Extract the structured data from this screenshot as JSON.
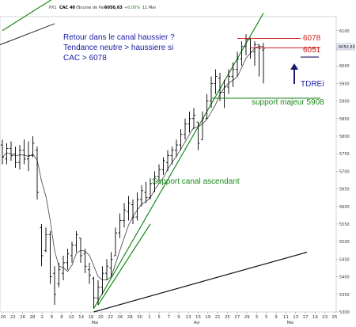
{
  "header": {
    "symbol": "PX1",
    "name": "CAC 40",
    "exchange": "(Bourse de Pa)",
    "last_value": "6050,63",
    "change": "+0,00%",
    "date": "11 Mai"
  },
  "chart_data": {
    "type": "candlestick",
    "title": "",
    "ylim": [
      5300,
      6140
    ],
    "y_ticks": [
      "5300",
      "5350",
      "5400",
      "5450",
      "5500",
      "5550",
      "5600",
      "5650",
      "5700",
      "5750",
      "5800",
      "5850",
      "5900",
      "5950",
      "6000",
      "6050",
      "6100"
    ],
    "x_ticks": [
      "20",
      "22",
      "26",
      "28",
      "2",
      "6",
      "8",
      "10",
      "14",
      "16",
      "20",
      "22",
      "26",
      "28",
      "30",
      "1",
      "5",
      "7",
      "9",
      "13",
      "15",
      "19",
      "21",
      "25",
      "27",
      "29",
      "3",
      "5",
      "9",
      "11",
      "13",
      "17",
      "19",
      "23",
      "25"
    ],
    "months": [
      "Mai",
      "Avr",
      "Mai"
    ],
    "last_price_badge": "6050,63",
    "bars": [
      {
        "h": 5790,
        "l": 5720,
        "o": 5775,
        "c": 5740
      },
      {
        "h": 5780,
        "l": 5720,
        "o": 5735,
        "c": 5765
      },
      {
        "h": 5785,
        "l": 5730,
        "o": 5765,
        "c": 5745
      },
      {
        "h": 5770,
        "l": 5710,
        "o": 5750,
        "c": 5725
      },
      {
        "h": 5775,
        "l": 5705,
        "o": 5725,
        "c": 5760
      },
      {
        "h": 5790,
        "l": 5720,
        "o": 5760,
        "c": 5735
      },
      {
        "h": 5785,
        "l": 5700,
        "o": 5735,
        "c": 5745
      },
      {
        "h": 5800,
        "l": 5740,
        "o": 5745,
        "c": 5780
      },
      {
        "h": 5770,
        "l": 5620,
        "o": 5760,
        "c": 5640
      },
      {
        "h": 5550,
        "l": 5430,
        "o": 5540,
        "c": 5460
      },
      {
        "h": 5540,
        "l": 5470,
        "o": 5475,
        "c": 5520
      },
      {
        "h": 5530,
        "l": 5380,
        "o": 5520,
        "c": 5400
      },
      {
        "h": 5430,
        "l": 5320,
        "o": 5410,
        "c": 5350
      },
      {
        "h": 5440,
        "l": 5370,
        "o": 5380,
        "c": 5420
      },
      {
        "h": 5460,
        "l": 5390,
        "o": 5410,
        "c": 5440
      },
      {
        "h": 5480,
        "l": 5420,
        "o": 5440,
        "c": 5465
      },
      {
        "h": 5500,
        "l": 5440,
        "o": 5460,
        "c": 5490
      },
      {
        "h": 5530,
        "l": 5470,
        "o": 5490,
        "c": 5520
      },
      {
        "h": 5510,
        "l": 5440,
        "o": 5510,
        "c": 5460
      },
      {
        "h": 5480,
        "l": 5410,
        "o": 5465,
        "c": 5430
      },
      {
        "h": 5440,
        "l": 5380,
        "o": 5420,
        "c": 5405
      },
      {
        "h": 5400,
        "l": 5310,
        "o": 5395,
        "c": 5340
      },
      {
        "h": 5390,
        "l": 5320,
        "o": 5340,
        "c": 5370
      },
      {
        "h": 5430,
        "l": 5350,
        "o": 5370,
        "c": 5410
      },
      {
        "h": 5450,
        "l": 5390,
        "o": 5410,
        "c": 5430
      },
      {
        "h": 5470,
        "l": 5400,
        "o": 5425,
        "c": 5450
      },
      {
        "h": 5540,
        "l": 5460,
        "o": 5460,
        "c": 5525
      },
      {
        "h": 5580,
        "l": 5510,
        "o": 5525,
        "c": 5560
      },
      {
        "h": 5610,
        "l": 5540,
        "o": 5560,
        "c": 5590
      },
      {
        "h": 5630,
        "l": 5560,
        "o": 5585,
        "c": 5610
      },
      {
        "h": 5620,
        "l": 5550,
        "o": 5605,
        "c": 5570
      },
      {
        "h": 5640,
        "l": 5560,
        "o": 5570,
        "c": 5620
      },
      {
        "h": 5660,
        "l": 5600,
        "o": 5620,
        "c": 5645
      },
      {
        "h": 5670,
        "l": 5610,
        "o": 5640,
        "c": 5625
      },
      {
        "h": 5680,
        "l": 5620,
        "o": 5625,
        "c": 5665
      },
      {
        "h": 5700,
        "l": 5640,
        "o": 5665,
        "c": 5685
      },
      {
        "h": 5720,
        "l": 5670,
        "o": 5685,
        "c": 5705
      },
      {
        "h": 5740,
        "l": 5690,
        "o": 5705,
        "c": 5730
      },
      {
        "h": 5760,
        "l": 5700,
        "o": 5725,
        "c": 5745
      },
      {
        "h": 5770,
        "l": 5720,
        "o": 5745,
        "c": 5760
      },
      {
        "h": 5790,
        "l": 5740,
        "o": 5760,
        "c": 5775
      },
      {
        "h": 5820,
        "l": 5760,
        "o": 5775,
        "c": 5805
      },
      {
        "h": 5850,
        "l": 5790,
        "o": 5805,
        "c": 5835
      },
      {
        "h": 5870,
        "l": 5810,
        "o": 5835,
        "c": 5850
      },
      {
        "h": 5880,
        "l": 5820,
        "o": 5850,
        "c": 5860
      },
      {
        "h": 5840,
        "l": 5760,
        "o": 5840,
        "c": 5780
      },
      {
        "h": 5870,
        "l": 5790,
        "o": 5790,
        "c": 5850
      },
      {
        "h": 5920,
        "l": 5850,
        "o": 5850,
        "c": 5900
      },
      {
        "h": 5970,
        "l": 5880,
        "o": 5900,
        "c": 5950
      },
      {
        "h": 5990,
        "l": 5920,
        "o": 5950,
        "c": 5970
      },
      {
        "h": 5980,
        "l": 5900,
        "o": 5965,
        "c": 5925
      },
      {
        "h": 5960,
        "l": 5880,
        "o": 5925,
        "c": 5940
      },
      {
        "h": 5990,
        "l": 5920,
        "o": 5940,
        "c": 5970
      },
      {
        "h": 6010,
        "l": 5940,
        "o": 5970,
        "c": 5990
      },
      {
        "h": 6040,
        "l": 5970,
        "o": 5990,
        "c": 6020
      },
      {
        "h": 6070,
        "l": 6000,
        "o": 6020,
        "c": 6055
      },
      {
        "h": 6090,
        "l": 6030,
        "o": 6055,
        "c": 6075
      },
      {
        "h": 6080,
        "l": 6020,
        "o": 6075,
        "c": 6040
      },
      {
        "h": 6070,
        "l": 6000,
        "o": 6040,
        "c": 6060
      },
      {
        "h": 6060,
        "l": 5970,
        "o": 6060,
        "c": 6050
      },
      {
        "h": 6065,
        "l": 5950,
        "o": 6045,
        "c": 6050
      }
    ],
    "trendlines": [
      {
        "name": "upper-channel",
        "from": [
          0,
          6100
        ],
        "to": [
          60,
          6570
        ]
      },
      {
        "name": "support-channel",
        "from": [
          21,
          5310
        ],
        "to": [
          60,
          6150
        ]
      },
      {
        "name": "lower-channel",
        "from": [
          21,
          5300
        ],
        "to": [
          70,
          5470
        ]
      },
      {
        "name": "support-channel-short",
        "from": [
          22,
          5320
        ],
        "to": [
          34,
          5550
        ]
      }
    ],
    "levels": [
      {
        "label": "6078",
        "value": 6078,
        "color": "#cc2222"
      },
      {
        "label": "6051",
        "value": 6051,
        "color": "#cc2222"
      },
      {
        "label": "support majeur 5908",
        "value": 5908,
        "color": "#1a8a1a"
      }
    ]
  },
  "annotations": {
    "title_lines": [
      "Retour dans le canal haussier ?",
      "Tendance neutre > haussiere si",
      "CAC > 6078"
    ],
    "support_canal": "Support canal ascendant",
    "support_majeur": "support majeur 5908",
    "level_high": "6078",
    "level_mid": "6051",
    "tdrei": "TDREi"
  },
  "colors": {
    "bars": "#000000",
    "moving_average": "#555555",
    "trendline_green": "#1a8a1a",
    "channel_black": "#111111",
    "resistance_red": "#cc2222",
    "note_blue": "#1a1aa6",
    "arrow_navy": "#1a1a66"
  }
}
